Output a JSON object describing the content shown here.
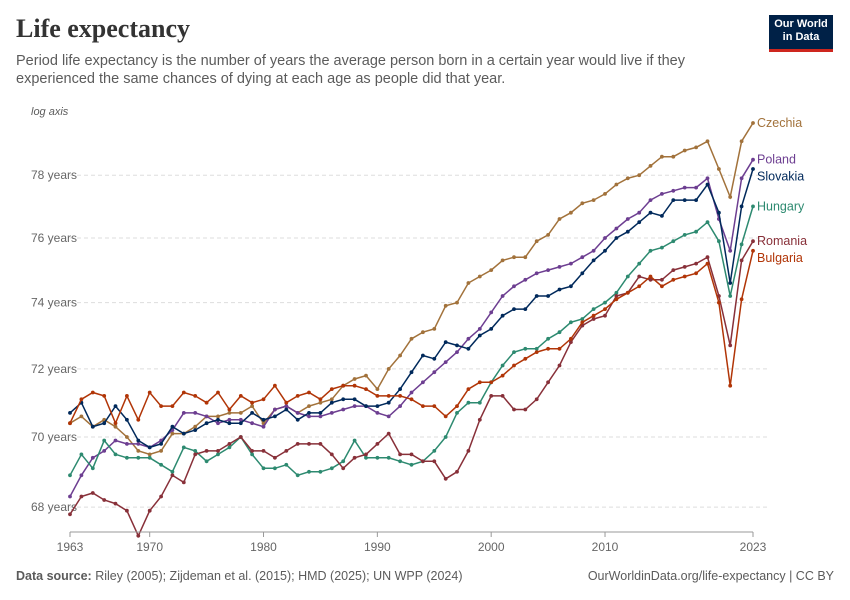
{
  "title": "Life expectancy",
  "subtitle": "Period life expectancy is the number of years the average person born in a certain year would live if they experienced the same chances of dying at each age as people did that year.",
  "logo": {
    "line1": "Our World",
    "line2": "in Data"
  },
  "footer": {
    "source_label": "Data source:",
    "source_text": "Riley (2005); Zijdeman et al. (2015); HMD (2025); UN WPP (2024)",
    "link": "OurWorldinData.org/life-expectancy | CC BY"
  },
  "chart_data": {
    "type": "line",
    "title": "Life expectancy",
    "axis_note": "log axis",
    "yscale": "log",
    "xlim": [
      1963,
      2023
    ],
    "ylim": [
      67.5,
      79.8
    ],
    "yticks": [
      68,
      70,
      72,
      74,
      76,
      78
    ],
    "ytick_labels": [
      "68 years",
      "70 years",
      "72 years",
      "74 years",
      "76 years",
      "78 years"
    ],
    "xticks": [
      1963,
      1970,
      1980,
      1990,
      2000,
      2010,
      2023
    ],
    "xtick_labels": [
      "1963",
      "1970",
      "1980",
      "1990",
      "2000",
      "2010",
      "2023"
    ],
    "grid": "horizontal dashed",
    "legend": "line-end labels",
    "x": [
      1963,
      1964,
      1965,
      1966,
      1967,
      1968,
      1969,
      1970,
      1971,
      1972,
      1973,
      1974,
      1975,
      1976,
      1977,
      1978,
      1979,
      1980,
      1981,
      1982,
      1983,
      1984,
      1985,
      1986,
      1987,
      1988,
      1989,
      1990,
      1991,
      1992,
      1993,
      1994,
      1995,
      1996,
      1997,
      1998,
      1999,
      2000,
      2001,
      2002,
      2003,
      2004,
      2005,
      2006,
      2007,
      2008,
      2009,
      2010,
      2011,
      2012,
      2013,
      2014,
      2015,
      2016,
      2017,
      2018,
      2019,
      2020,
      2021,
      2022,
      2023
    ],
    "series": [
      {
        "name": "Czechia",
        "color": "#a2723b",
        "values": [
          70.4,
          70.6,
          70.3,
          70.5,
          70.3,
          70.0,
          69.6,
          69.5,
          69.6,
          70.1,
          70.1,
          70.3,
          70.6,
          70.6,
          70.7,
          70.7,
          70.9,
          70.4,
          70.8,
          70.9,
          70.7,
          70.9,
          71.0,
          71.1,
          71.5,
          71.7,
          71.8,
          71.4,
          72.0,
          72.4,
          72.9,
          73.1,
          73.2,
          73.9,
          74.0,
          74.6,
          74.8,
          75.0,
          75.3,
          75.4,
          75.4,
          75.9,
          76.1,
          76.6,
          76.8,
          77.1,
          77.2,
          77.4,
          77.7,
          77.9,
          78.0,
          78.3,
          78.6,
          78.6,
          78.8,
          78.9,
          79.1,
          78.2,
          77.3,
          79.1,
          79.7
        ]
      },
      {
        "name": "Poland",
        "color": "#6d3e91",
        "values": [
          68.3,
          68.9,
          69.4,
          69.6,
          69.9,
          69.8,
          69.8,
          69.7,
          69.9,
          70.2,
          70.7,
          70.7,
          70.6,
          70.4,
          70.5,
          70.5,
          70.4,
          70.3,
          70.8,
          70.9,
          70.7,
          70.6,
          70.6,
          70.7,
          70.8,
          70.9,
          70.9,
          70.7,
          70.6,
          70.9,
          71.3,
          71.6,
          71.9,
          72.2,
          72.5,
          72.9,
          73.2,
          73.7,
          74.2,
          74.5,
          74.7,
          74.9,
          75.0,
          75.1,
          75.2,
          75.4,
          75.6,
          76.0,
          76.3,
          76.6,
          76.8,
          77.2,
          77.4,
          77.5,
          77.6,
          77.6,
          77.9,
          76.6,
          75.6,
          77.9,
          78.5
        ]
      },
      {
        "name": "Slovakia",
        "color": "#00295b",
        "values": [
          70.7,
          71.0,
          70.3,
          70.4,
          70.9,
          70.5,
          69.9,
          69.7,
          69.8,
          70.3,
          70.1,
          70.2,
          70.4,
          70.5,
          70.4,
          70.4,
          70.7,
          70.5,
          70.6,
          70.8,
          70.5,
          70.7,
          70.7,
          71.0,
          71.1,
          71.1,
          70.9,
          70.9,
          71.0,
          71.4,
          71.9,
          72.4,
          72.3,
          72.8,
          72.7,
          72.6,
          73.0,
          73.2,
          73.6,
          73.8,
          73.8,
          74.2,
          74.2,
          74.4,
          74.5,
          74.9,
          75.3,
          75.6,
          76.0,
          76.2,
          76.5,
          76.8,
          76.7,
          77.2,
          77.2,
          77.2,
          77.7,
          76.8,
          74.6,
          77.0,
          78.2
        ]
      },
      {
        "name": "Hungary",
        "color": "#2d8a70",
        "values": [
          68.9,
          69.5,
          69.1,
          69.9,
          69.5,
          69.4,
          69.4,
          69.4,
          69.2,
          69.0,
          69.7,
          69.6,
          69.3,
          69.5,
          69.7,
          70.0,
          69.5,
          69.1,
          69.1,
          69.2,
          68.9,
          69.0,
          69.0,
          69.1,
          69.3,
          69.9,
          69.4,
          69.4,
          69.4,
          69.3,
          69.2,
          69.3,
          69.6,
          70.0,
          70.7,
          71.0,
          71.0,
          71.6,
          72.1,
          72.5,
          72.6,
          72.6,
          72.9,
          73.1,
          73.4,
          73.5,
          73.8,
          74.0,
          74.3,
          74.8,
          75.2,
          75.6,
          75.7,
          75.9,
          76.1,
          76.2,
          76.5,
          75.9,
          74.2,
          75.8,
          77.0
        ]
      },
      {
        "name": "Romania",
        "color": "#883039",
        "values": [
          67.8,
          68.3,
          68.4,
          68.2,
          68.1,
          67.9,
          67.2,
          67.9,
          68.3,
          68.9,
          68.7,
          69.5,
          69.6,
          69.6,
          69.8,
          70.0,
          69.6,
          69.6,
          69.4,
          69.6,
          69.8,
          69.8,
          69.8,
          69.5,
          69.1,
          69.4,
          69.5,
          69.8,
          70.1,
          69.5,
          69.5,
          69.3,
          69.3,
          68.8,
          69.0,
          69.6,
          70.5,
          71.2,
          71.2,
          70.8,
          70.8,
          71.1,
          71.6,
          72.1,
          72.8,
          73.3,
          73.5,
          73.6,
          74.2,
          74.3,
          74.8,
          74.7,
          74.7,
          75.0,
          75.1,
          75.2,
          75.4,
          74.2,
          72.7,
          75.3,
          75.9
        ]
      },
      {
        "name": "Bulgaria",
        "color": "#b13507",
        "values": [
          70.4,
          71.1,
          71.3,
          71.2,
          70.4,
          71.2,
          70.5,
          71.3,
          70.9,
          70.9,
          71.3,
          71.2,
          71.0,
          71.3,
          70.8,
          71.2,
          71.0,
          71.1,
          71.5,
          71.0,
          71.2,
          71.3,
          71.1,
          71.4,
          71.5,
          71.5,
          71.4,
          71.2,
          71.2,
          71.2,
          71.1,
          70.9,
          70.9,
          70.6,
          70.9,
          71.4,
          71.6,
          71.6,
          71.8,
          72.1,
          72.3,
          72.5,
          72.6,
          72.6,
          72.9,
          73.4,
          73.6,
          73.8,
          74.1,
          74.3,
          74.5,
          74.8,
          74.5,
          74.7,
          74.8,
          74.9,
          75.2,
          74.0,
          71.5,
          74.1,
          75.6
        ]
      }
    ]
  }
}
